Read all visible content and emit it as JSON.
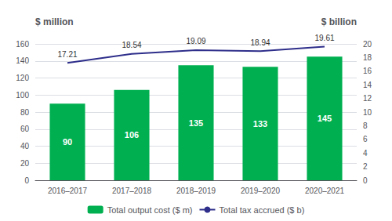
{
  "chart_data": {
    "type": "bar",
    "categories": [
      "2016–2017",
      "2017–2018",
      "2018–2019",
      "2019–2020",
      "2020–2021"
    ],
    "series": [
      {
        "name": "Total output cost ($ m)",
        "type": "bar",
        "color": "#00B050",
        "values": [
          90,
          106,
          135,
          133,
          145
        ]
      },
      {
        "name": "Total tax accrued ($ b)",
        "type": "line",
        "color": "#2E2E8B",
        "axis": "y2",
        "values": [
          17.21,
          18.54,
          19.09,
          18.94,
          19.61
        ]
      }
    ],
    "ylabel": "$ million",
    "y2label": "$ billion",
    "ylim": [
      0,
      160
    ],
    "yticks": [
      0,
      20,
      40,
      60,
      80,
      100,
      120,
      140,
      160
    ],
    "y2lim": [
      0,
      20
    ],
    "y2ticks": [
      0,
      2,
      4,
      6,
      8,
      10,
      12,
      14,
      16,
      18,
      20
    ],
    "grid": true,
    "legend": "bottom",
    "data_labels": true
  }
}
